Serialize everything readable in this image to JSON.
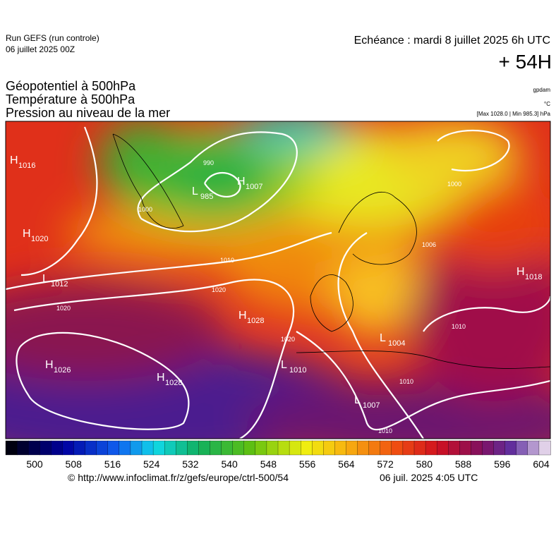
{
  "header": {
    "run": "Run GEFS (run controle)",
    "run_date": "06 juillet 2025 00Z",
    "echeance": "Echéance : mardi 8 juillet 2025 6h UTC",
    "lead": "+ 54H",
    "titles": [
      "Géopotentiel à 500hPa",
      "Température à 500hPa",
      "Pression au niveau de la mer"
    ],
    "units": [
      "gpdam",
      "°C",
      "[Max 1028.0 | Min 985.3] hPa"
    ]
  },
  "pressure_centers": [
    {
      "letter": "H",
      "value": 1016
    },
    {
      "letter": "L",
      "value": 985
    },
    {
      "letter": "H",
      "value": 1007
    },
    {
      "letter": "H",
      "value": 1020
    },
    {
      "letter": "L",
      "value": 1012
    },
    {
      "letter": "H",
      "value": 1028
    },
    {
      "letter": "H",
      "value": 1026
    },
    {
      "letter": "H",
      "value": 1028
    },
    {
      "letter": "L",
      "value": 1010
    },
    {
      "letter": "L",
      "value": 1007
    },
    {
      "letter": "H",
      "value": 1018
    },
    {
      "letter": "L",
      "value": 1004
    }
  ],
  "isobar_labels": [
    990,
    1000,
    1010,
    1020,
    1020,
    1020,
    1010,
    1010,
    1010,
    1000,
    1006
  ],
  "colorbar": {
    "labels": [
      500,
      508,
      516,
      524,
      532,
      540,
      548,
      556,
      564,
      572,
      580,
      588,
      596,
      604
    ]
  },
  "footer": {
    "url": "© http://www.infoclimat.fr/z/gefs/europe/ctrl-500/54",
    "time": "06 juil. 2025  4:05 UTC"
  }
}
